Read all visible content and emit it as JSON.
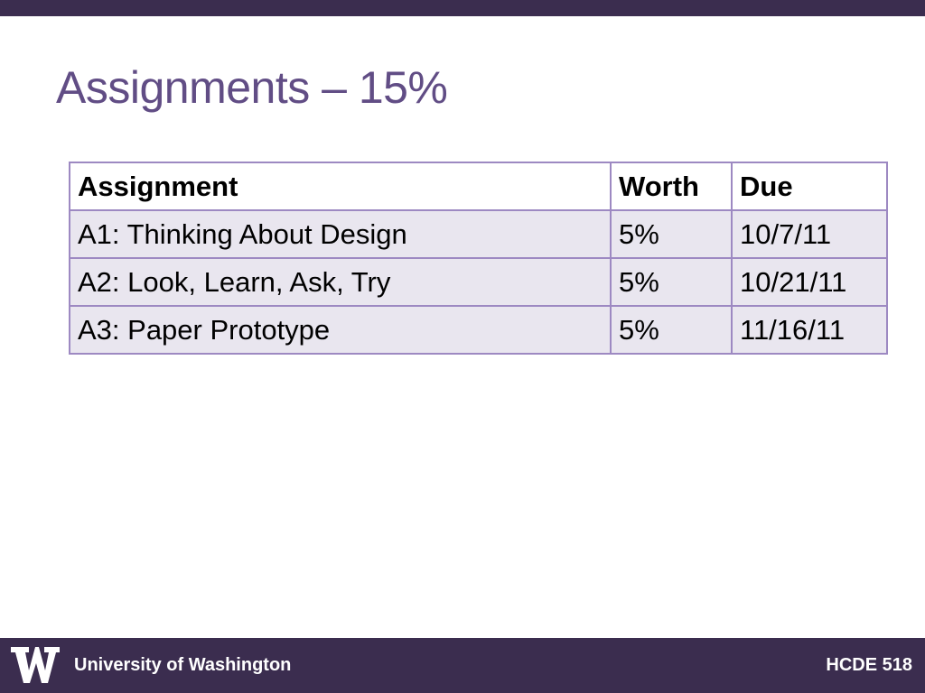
{
  "slide": {
    "title": "Assignments – 15%"
  },
  "table": {
    "headers": [
      "Assignment",
      "Worth",
      "Due"
    ],
    "rows": [
      [
        "A1: Thinking About Design",
        "5%",
        "10/7/11"
      ],
      [
        "A2: Look, Learn, Ask, Try",
        "5%",
        "10/21/11"
      ],
      [
        "A3: Paper Prototype",
        "5%",
        "11/16/11"
      ]
    ]
  },
  "footer": {
    "logo_icon": "uw-w-logo-icon",
    "left_text": "University of Washington",
    "right_text": "HCDE 518"
  },
  "colors": {
    "bar": "#3b2d4f",
    "title": "#614d85",
    "table_border": "#9d89c2",
    "row_fill": "#e9e6ef"
  }
}
